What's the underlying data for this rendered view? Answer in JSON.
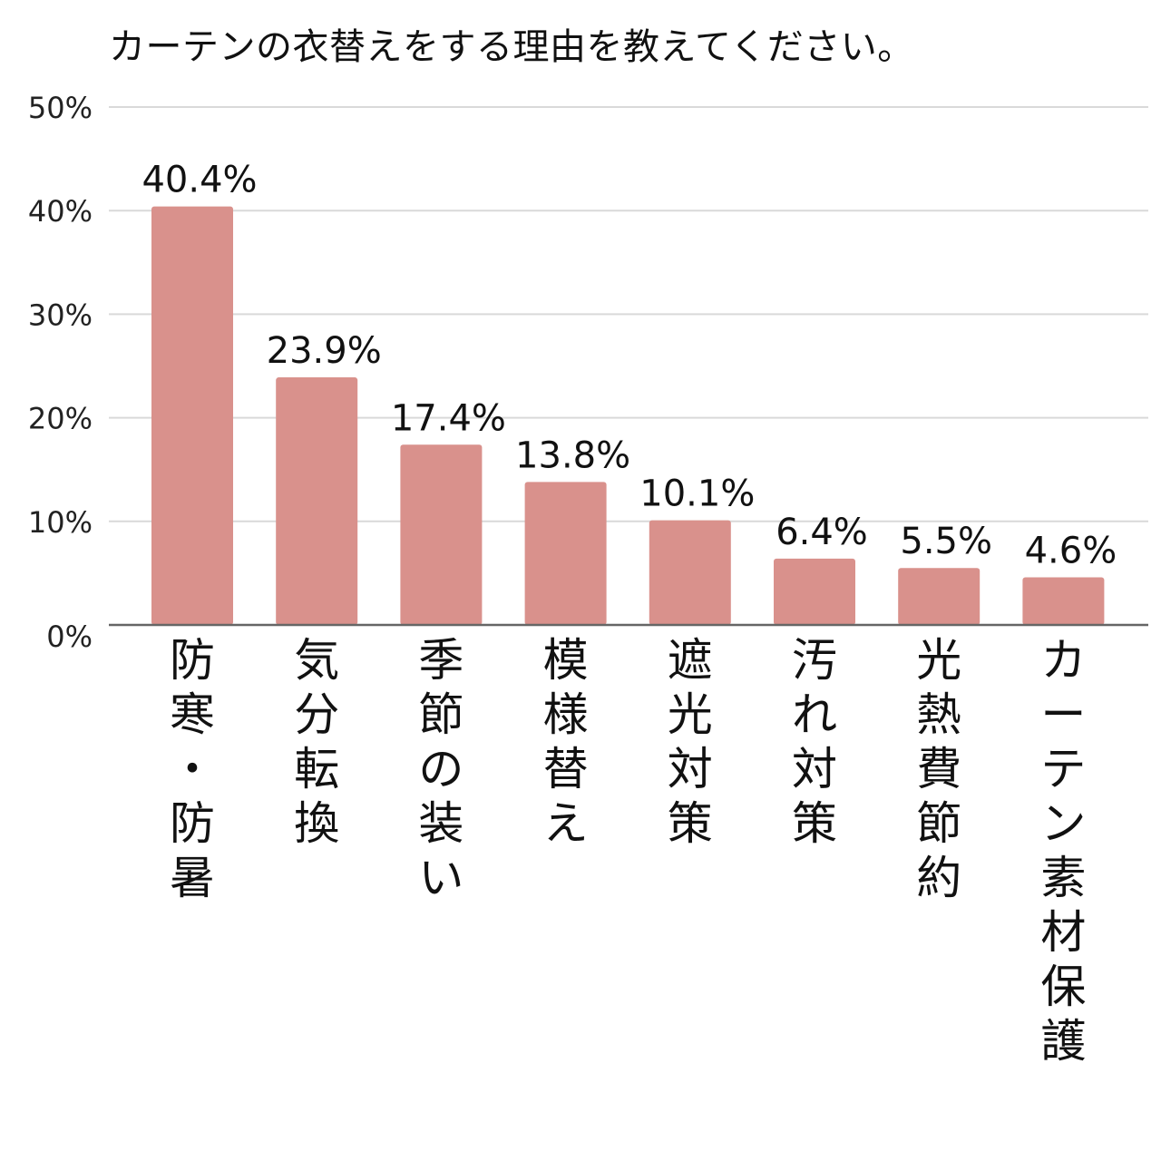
{
  "chart_data": {
    "type": "bar",
    "title": "カーテンの衣替えをする理由を教えてください。",
    "xlabel": "",
    "ylabel": "",
    "ylim": [
      0,
      50
    ],
    "yticks": [
      "0%",
      "10%",
      "20%",
      "30%",
      "40%",
      "50%"
    ],
    "grid": true,
    "legend": "none",
    "categories": [
      "防寒・防暑",
      "気分転換",
      "季節の装い",
      "模様替え",
      "遮光対策",
      "汚れ対策",
      "光熱費節約",
      "カーテン素材保護"
    ],
    "values": [
      40.4,
      23.9,
      17.4,
      13.8,
      10.1,
      6.4,
      5.5,
      4.6
    ],
    "value_labels": [
      "40.4%",
      "23.9%",
      "17.4%",
      "13.8%",
      "10.1%",
      "6.4%",
      "5.5%",
      "4.6%"
    ],
    "colors": {
      "bar": "#d9918c",
      "grid": "#d9d9d9",
      "axis": "#666666"
    }
  }
}
